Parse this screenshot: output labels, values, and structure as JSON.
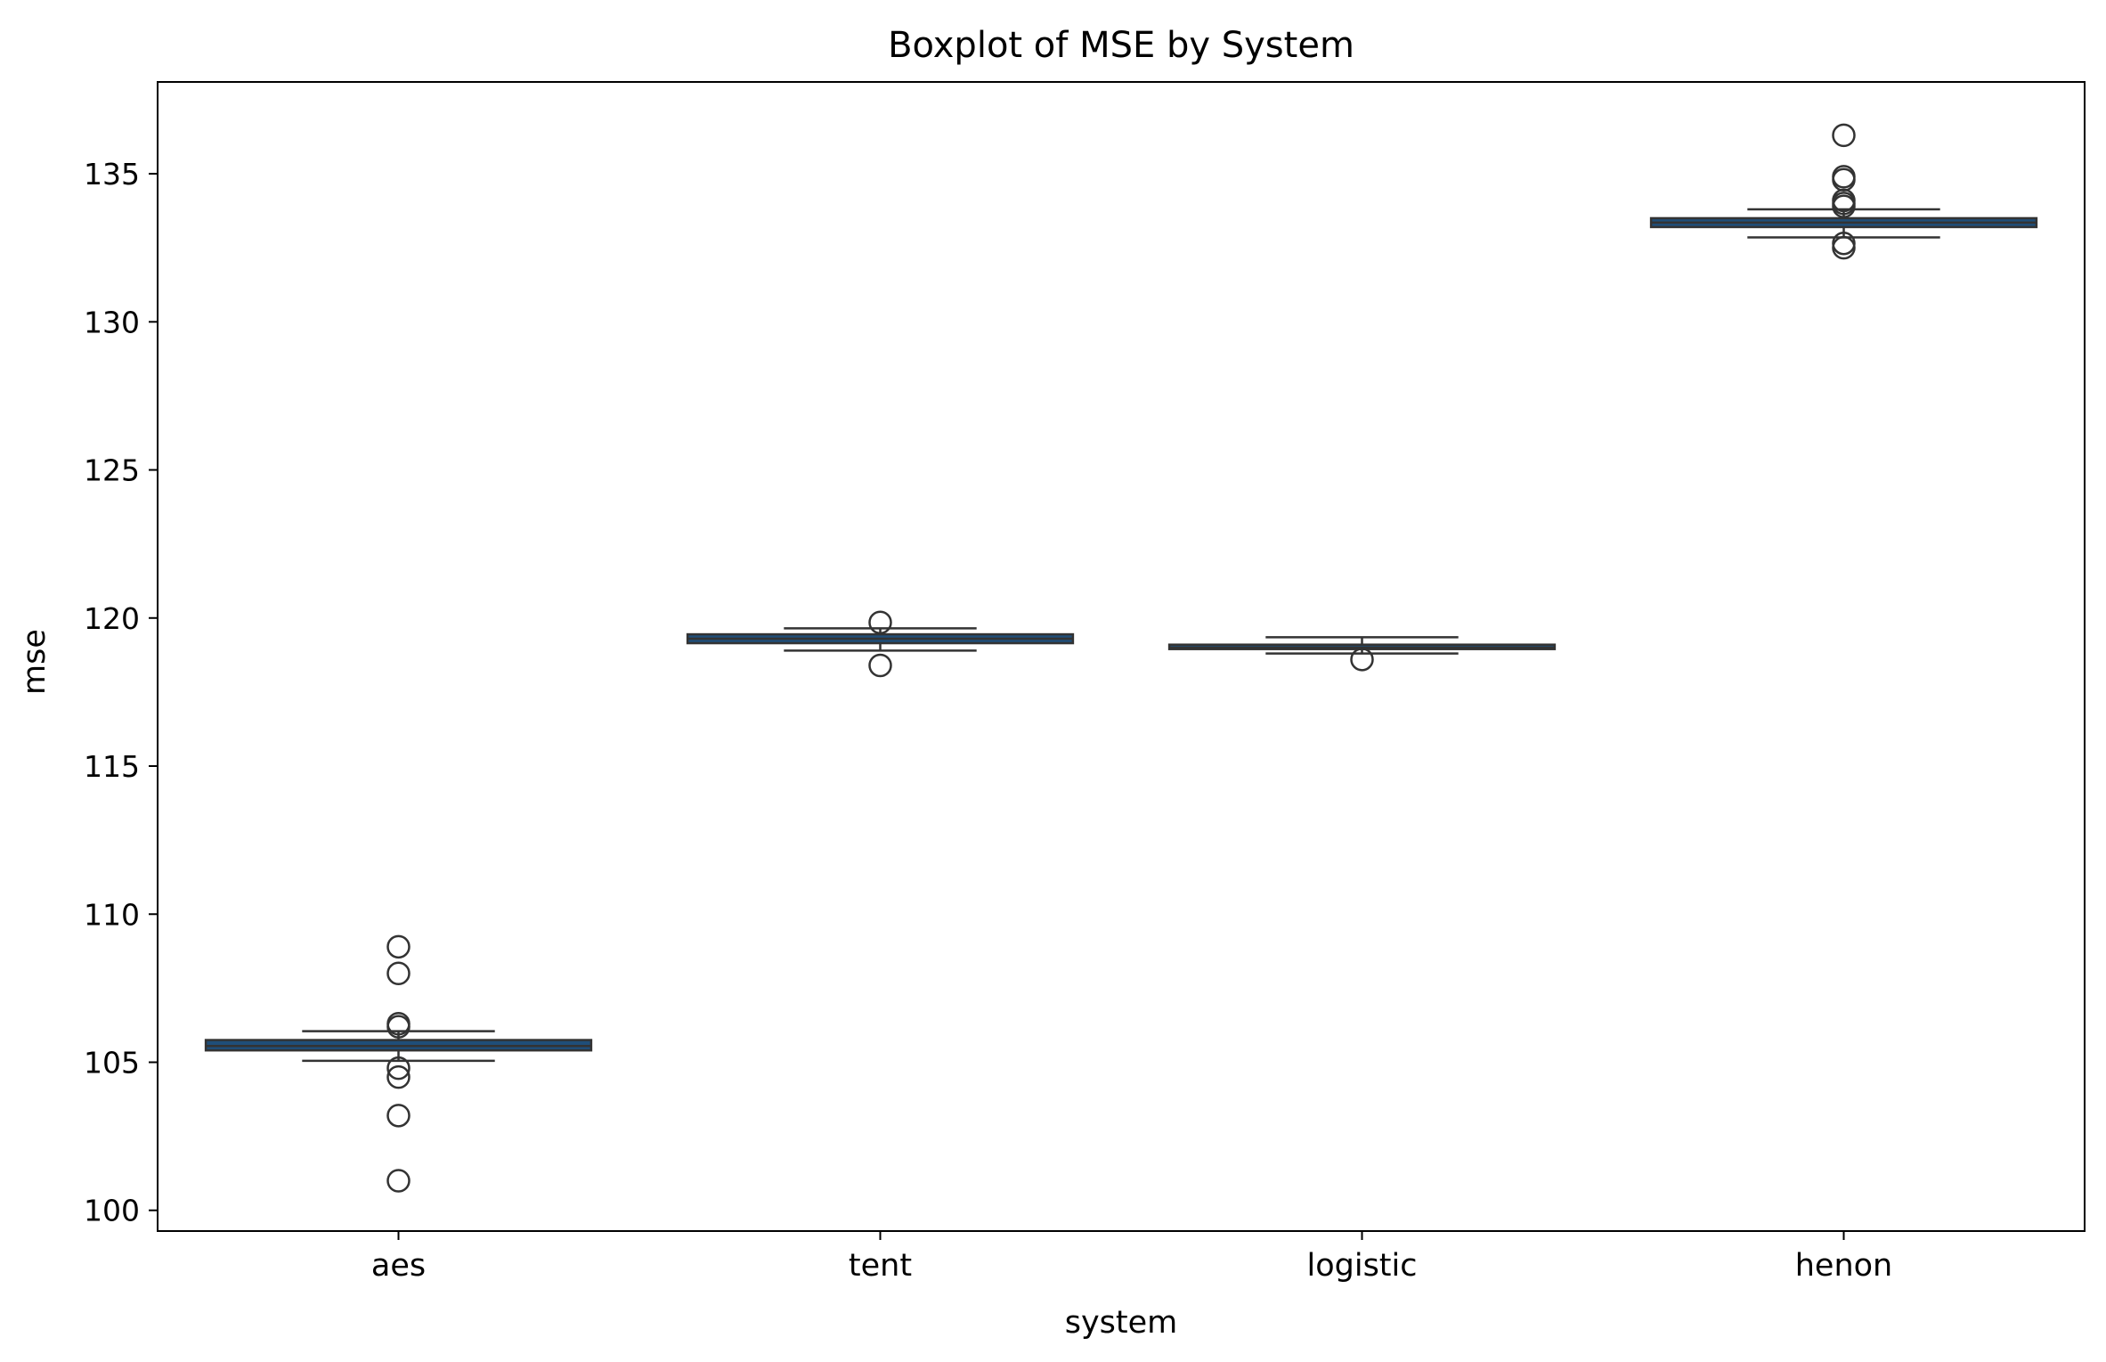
{
  "chart_data": {
    "type": "boxplot",
    "title": "Boxplot of MSE by System",
    "xlabel": "system",
    "ylabel": "mse",
    "ylim": [
      99.3,
      138.1
    ],
    "yticks": [
      100,
      105,
      110,
      115,
      120,
      125,
      130,
      135
    ],
    "grid": false,
    "legend": "none",
    "box_color": "#1f4e79",
    "categories": [
      "aes",
      "tent",
      "logistic",
      "henon"
    ],
    "boxes": [
      {
        "category": "aes",
        "whisker_low": 105.05,
        "q1": 105.4,
        "median": 105.55,
        "q3": 105.75,
        "whisker_high": 106.05,
        "outliers": [
          101.0,
          103.2,
          104.5,
          104.8,
          106.2,
          106.3,
          108.0,
          108.9
        ]
      },
      {
        "category": "tent",
        "whisker_low": 118.9,
        "q1": 119.15,
        "median": 119.3,
        "q3": 119.45,
        "whisker_high": 119.65,
        "outliers": [
          118.4,
          119.85
        ]
      },
      {
        "category": "logistic",
        "whisker_low": 118.8,
        "q1": 118.95,
        "median": 119.0,
        "q3": 119.1,
        "whisker_high": 119.35,
        "outliers": [
          118.6
        ]
      },
      {
        "category": "henon",
        "whisker_low": 132.85,
        "q1": 133.2,
        "median": 133.35,
        "q3": 133.5,
        "whisker_high": 133.8,
        "outliers": [
          132.5,
          132.65,
          133.9,
          134.0,
          134.1,
          134.8,
          134.9,
          136.3
        ]
      }
    ]
  }
}
